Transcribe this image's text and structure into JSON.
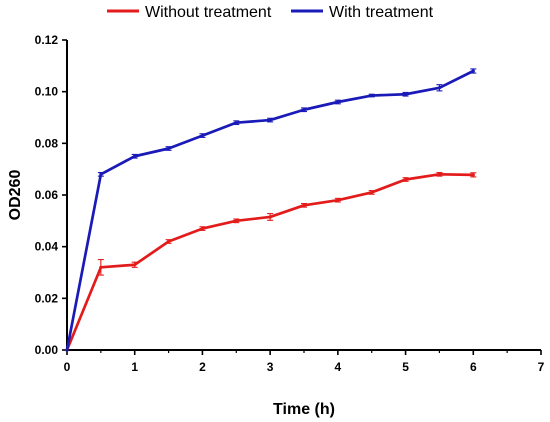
{
  "chart_data": {
    "type": "line",
    "title": "",
    "xlabel": "Time (h)",
    "ylabel": "OD260",
    "xlim": [
      0,
      7
    ],
    "ylim": [
      0,
      0.12
    ],
    "x_ticks": [
      "0",
      "1",
      "2",
      "3",
      "4",
      "5",
      "6",
      "7"
    ],
    "y_ticks": [
      "0.00",
      "0.02",
      "0.04",
      "0.06",
      "0.08",
      "0.10",
      "0.12"
    ],
    "grid": false,
    "legend_position": "top-center",
    "series": [
      {
        "name": "Without treatment",
        "color": "#e31b1b",
        "points": [
          [
            0,
            0.0,
            0.0
          ],
          [
            0.5,
            0.032,
            0.003
          ],
          [
            1,
            0.033,
            0.001
          ],
          [
            1.5,
            0.042,
            0.0007
          ],
          [
            2,
            0.047,
            0.0007
          ],
          [
            2.5,
            0.05,
            0.0007
          ],
          [
            3,
            0.0515,
            0.0013
          ],
          [
            3.5,
            0.056,
            0.0007
          ],
          [
            4,
            0.058,
            0.0007
          ],
          [
            4.5,
            0.061,
            0.0007
          ],
          [
            5,
            0.066,
            0.0007
          ],
          [
            5.5,
            0.068,
            0.0007
          ],
          [
            6,
            0.0678,
            0.0008
          ]
        ]
      },
      {
        "name": "With treatment",
        "color": "#1a1ab8",
        "points": [
          [
            0,
            0.0,
            0.0
          ],
          [
            0.5,
            0.068,
            0.0007
          ],
          [
            1,
            0.075,
            0.0007
          ],
          [
            1.5,
            0.078,
            0.0007
          ],
          [
            2,
            0.083,
            0.0007
          ],
          [
            2.5,
            0.088,
            0.0007
          ],
          [
            3,
            0.089,
            0.0007
          ],
          [
            3.5,
            0.093,
            0.0007
          ],
          [
            4,
            0.096,
            0.0007
          ],
          [
            4.5,
            0.0985,
            0.0005
          ],
          [
            5,
            0.099,
            0.0007
          ],
          [
            5.5,
            0.1015,
            0.0012
          ],
          [
            6,
            0.108,
            0.0008
          ]
        ]
      }
    ]
  }
}
